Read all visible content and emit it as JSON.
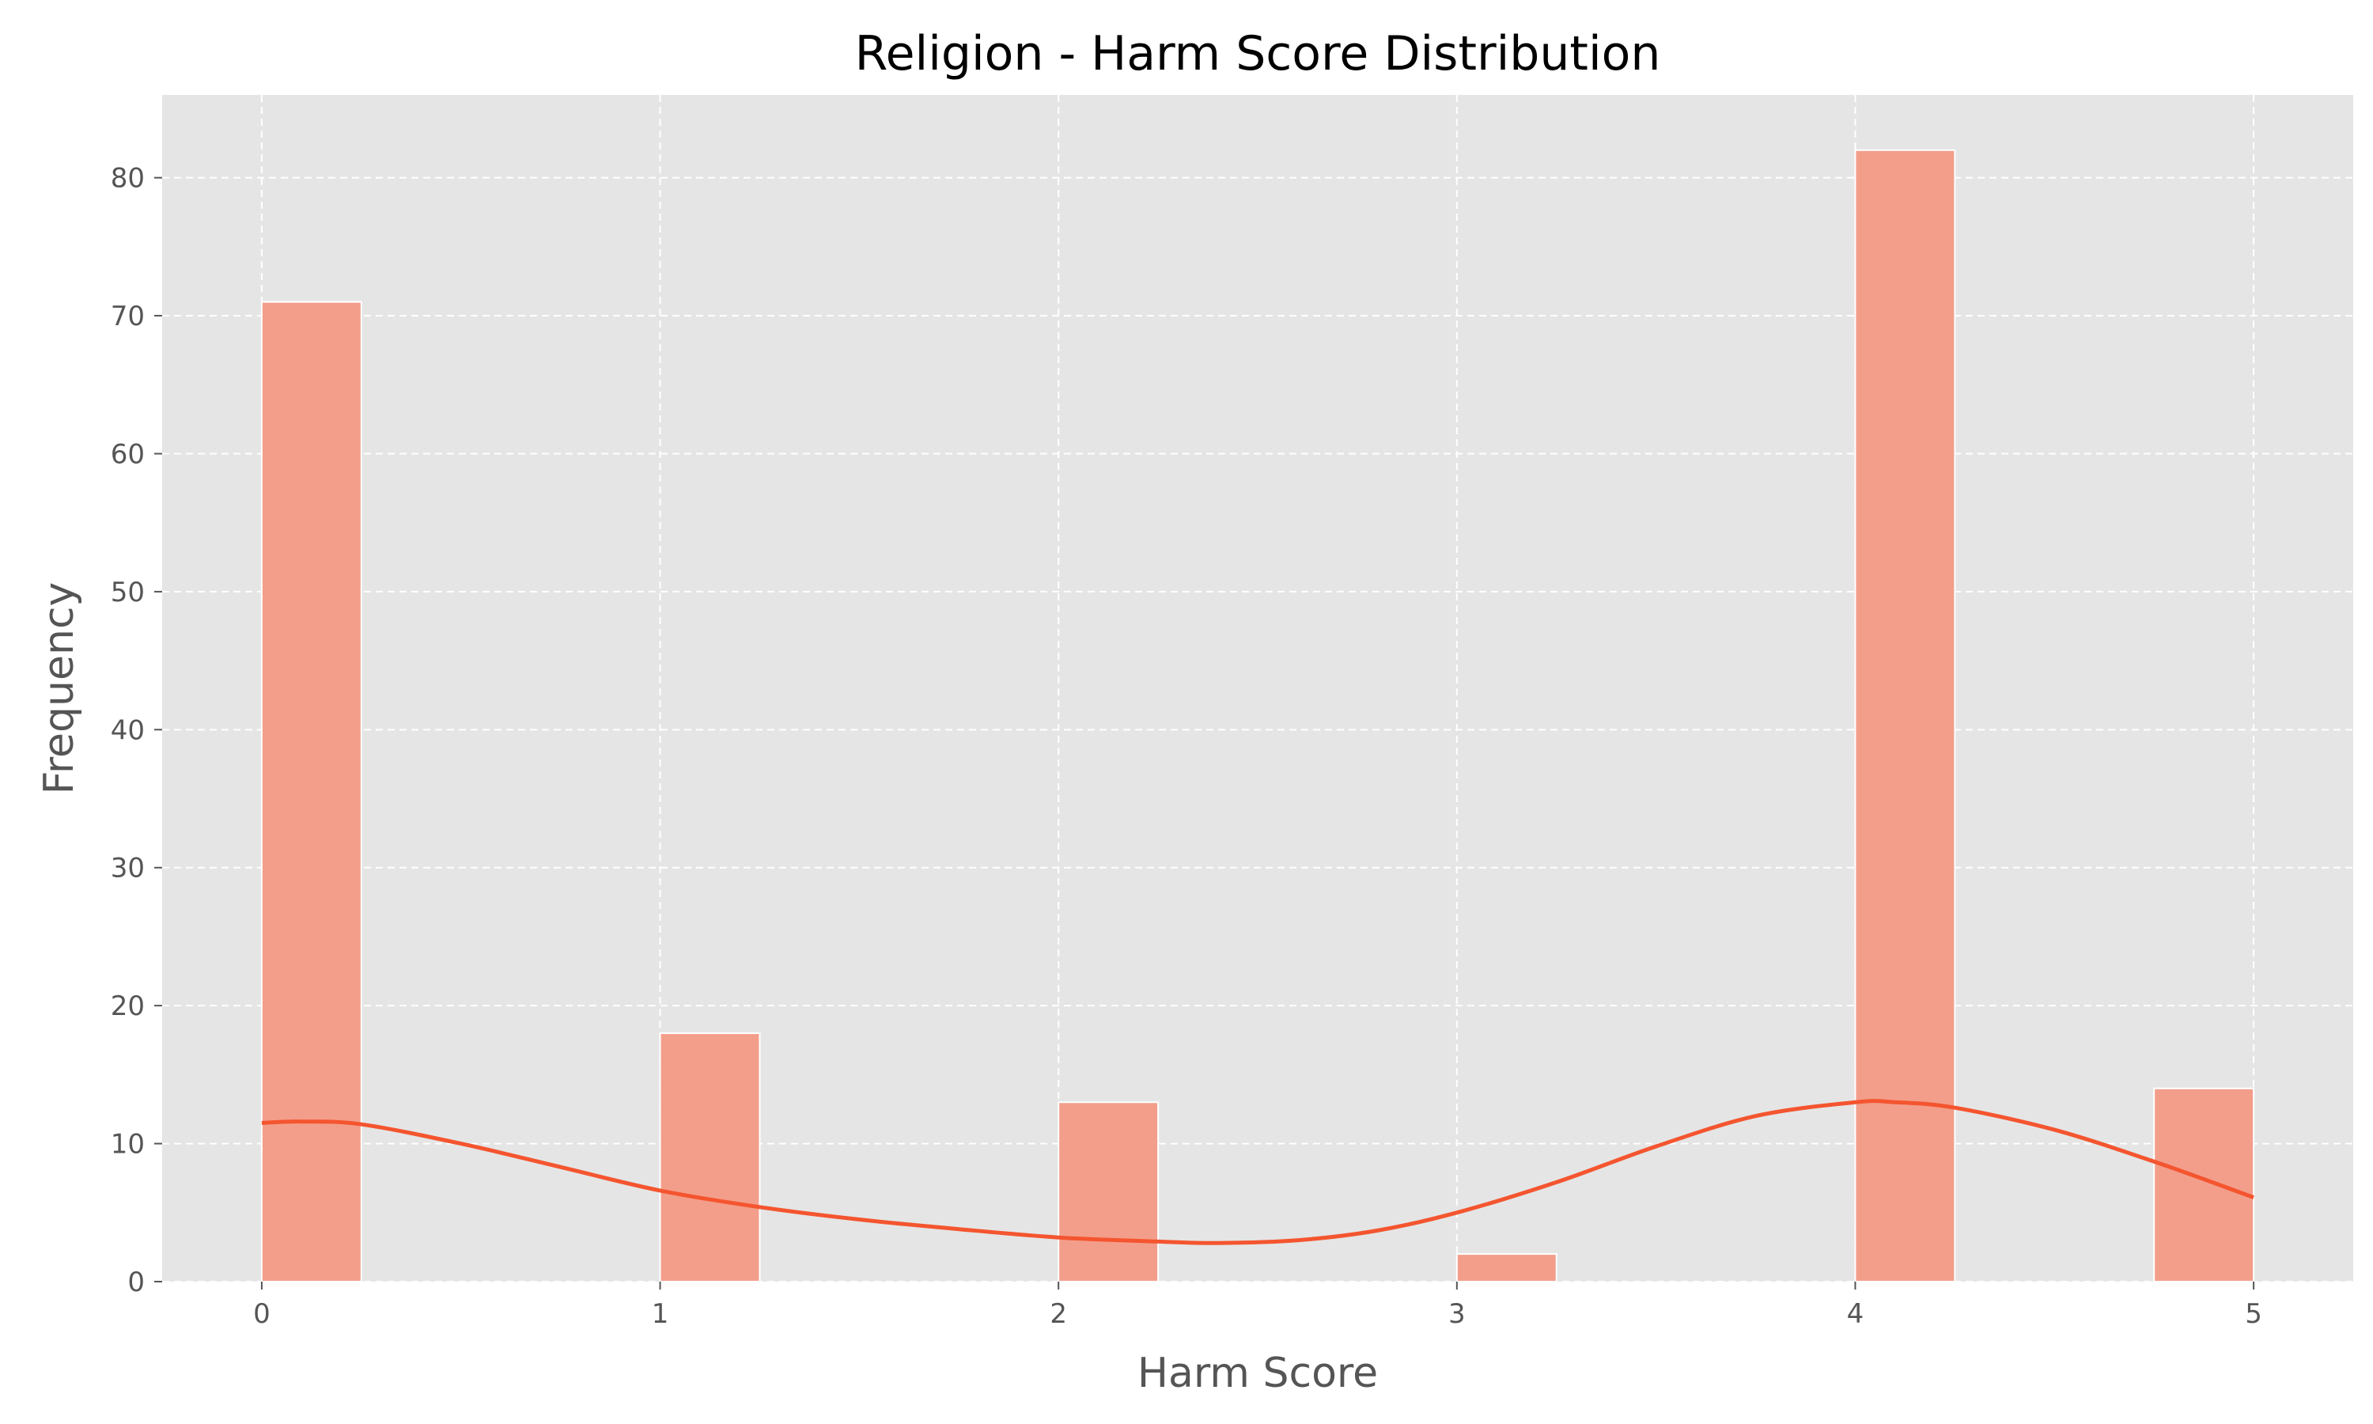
{
  "chart_data": {
    "type": "bar",
    "title": "Religion - Harm Score Distribution",
    "xlabel": "Harm Score",
    "ylabel": "Frequency",
    "xlim": [
      -0.25,
      5.25
    ],
    "ylim": [
      0,
      86
    ],
    "bin_width": 0.25,
    "bars": [
      {
        "x_start": 0.0,
        "value": 71
      },
      {
        "x_start": 1.0,
        "value": 18
      },
      {
        "x_start": 2.0,
        "value": 13
      },
      {
        "x_start": 3.0,
        "value": 2
      },
      {
        "x_start": 4.0,
        "value": 82
      },
      {
        "x_start": 4.75,
        "value": 14
      }
    ],
    "kde_curve": {
      "x": [
        0.0,
        0.1,
        0.25,
        0.5,
        0.75,
        1.0,
        1.25,
        1.5,
        1.75,
        2.0,
        2.25,
        2.4,
        2.6,
        2.8,
        3.0,
        3.25,
        3.5,
        3.75,
        4.0,
        4.1,
        4.25,
        4.5,
        4.75,
        5.0
      ],
      "y": [
        11.5,
        11.6,
        11.4,
        10.0,
        8.3,
        6.6,
        5.4,
        4.5,
        3.8,
        3.2,
        2.9,
        2.8,
        3.0,
        3.7,
        5.0,
        7.2,
        9.8,
        12.0,
        13.0,
        13.0,
        12.6,
        11.0,
        8.7,
        6.1
      ]
    },
    "x_ticks": [
      0,
      1,
      2,
      3,
      4,
      5
    ],
    "y_ticks": [
      0,
      10,
      20,
      30,
      40,
      50,
      60,
      70,
      80
    ],
    "grid": true,
    "colors": {
      "bar": "#f39e8b",
      "bar_edge": "#ffffff",
      "kde": "#f4552f",
      "plot_background": "#e5e5e5",
      "grid": "#ffffff"
    }
  }
}
